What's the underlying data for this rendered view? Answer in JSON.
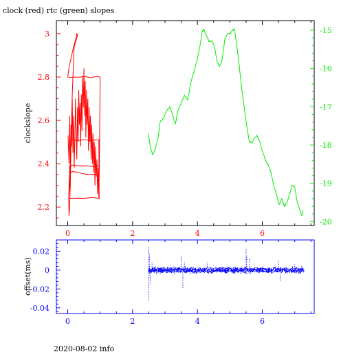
{
  "title": "clock (red) rtc (green) slopes",
  "footer": "2020-08-02 info",
  "colors": {
    "clock": "#ff0000",
    "rtc": "#00ee00",
    "offset": "#0000ff",
    "axis": "#000000"
  },
  "chart_data": [
    {
      "type": "line",
      "title": "clock (red) rtc (green) slopes",
      "xlabel": "",
      "ylabel": "clockslope",
      "xlim": [
        -0.35,
        7.6
      ],
      "xticks": [
        0,
        2,
        4,
        6
      ],
      "ylim_left": [
        2.115,
        3.06
      ],
      "yticks_left": [
        2.2,
        2.4,
        2.6,
        2.8,
        3
      ],
      "ylim_right": [
        -20.1,
        -14.75
      ],
      "yticks_right": [
        -15,
        -16,
        -17,
        -18,
        -19,
        -20
      ],
      "series": [
        {
          "name": "clock",
          "color": "#ff0000",
          "axis": "left",
          "points": [
            [
              0.01,
              2.53
            ],
            [
              0.04,
              2.4
            ],
            [
              0.06,
              2.62
            ],
            [
              0.08,
              2.35
            ],
            [
              0.1,
              2.58
            ],
            [
              0.12,
              2.48
            ],
            [
              0.14,
              2.7
            ],
            [
              0.16,
              2.45
            ],
            [
              0.18,
              2.62
            ],
            [
              0.2,
              2.38
            ],
            [
              0.22,
              2.52
            ],
            [
              0.24,
              2.7
            ],
            [
              0.26,
              2.55
            ],
            [
              0.28,
              2.42
            ],
            [
              0.3,
              2.66
            ],
            [
              0.32,
              2.5
            ],
            [
              0.34,
              2.74
            ],
            [
              0.36,
              2.58
            ],
            [
              0.38,
              2.68
            ],
            [
              0.4,
              2.48
            ],
            [
              0.42,
              2.72
            ],
            [
              0.44,
              2.55
            ],
            [
              0.46,
              2.8
            ],
            [
              0.48,
              2.66
            ],
            [
              0.5,
              2.84
            ],
            [
              0.52,
              2.62
            ],
            [
              0.54,
              2.78
            ],
            [
              0.56,
              2.52
            ],
            [
              0.58,
              2.74
            ],
            [
              0.6,
              2.58
            ],
            [
              0.62,
              2.7
            ],
            [
              0.64,
              2.46
            ],
            [
              0.66,
              2.66
            ],
            [
              0.68,
              2.5
            ],
            [
              0.7,
              2.62
            ],
            [
              0.72,
              2.42
            ],
            [
              0.74,
              2.58
            ],
            [
              0.76,
              2.4
            ],
            [
              0.78,
              2.54
            ],
            [
              0.8,
              2.36
            ],
            [
              0.82,
              2.5
            ],
            [
              0.84,
              2.3
            ],
            [
              0.86,
              2.48
            ],
            [
              0.88,
              2.34
            ],
            [
              0.9,
              2.42
            ],
            [
              0.92,
              2.26
            ],
            [
              0.94,
              2.38
            ],
            [
              0.96,
              2.24
            ],
            [
              0.98,
              2.45
            ],
            [
              0.99,
              2.62
            ],
            [
              1.0,
              2.79
            ],
            [
              0.99,
              2.8
            ],
            [
              0.8,
              2.8
            ],
            [
              0.6,
              2.8
            ],
            [
              0.4,
              2.8
            ],
            [
              0.2,
              2.8
            ],
            [
              0.0,
              2.8
            ],
            [
              0.06,
              2.86
            ],
            [
              0.12,
              2.9
            ],
            [
              0.18,
              2.94
            ],
            [
              0.24,
              2.97
            ],
            [
              0.28,
              3.0
            ],
            [
              0.3,
              2.99
            ],
            [
              0.2,
              2.94
            ],
            [
              0.14,
              2.72
            ],
            [
              0.1,
              2.48
            ],
            [
              0.08,
              2.3
            ],
            [
              0.06,
              2.2
            ],
            [
              0.04,
              2.16
            ],
            [
              0.03,
              2.24
            ],
            [
              0.05,
              2.36
            ],
            [
              0.3,
              2.36
            ],
            [
              0.6,
              2.35
            ],
            [
              0.96,
              2.35
            ],
            [
              0.98,
              2.39
            ],
            [
              0.6,
              2.39
            ],
            [
              0.3,
              2.39
            ],
            [
              0.05,
              2.39
            ],
            [
              0.07,
              2.24
            ],
            [
              0.5,
              2.24
            ],
            [
              0.97,
              2.24
            ],
            [
              0.96,
              2.51
            ],
            [
              0.5,
              2.51
            ],
            [
              0.07,
              2.51
            ]
          ]
        },
        {
          "name": "rtc",
          "color": "#00ee00",
          "axis": "right",
          "points": [
            [
              2.48,
              -17.7
            ],
            [
              2.55,
              -18.05
            ],
            [
              2.62,
              -18.25
            ],
            [
              2.7,
              -18.1
            ],
            [
              2.78,
              -17.85
            ],
            [
              2.85,
              -17.4
            ],
            [
              2.95,
              -17.3
            ],
            [
              3.05,
              -17.1
            ],
            [
              3.15,
              -17.0
            ],
            [
              3.25,
              -17.25
            ],
            [
              3.32,
              -17.45
            ],
            [
              3.4,
              -17.1
            ],
            [
              3.5,
              -16.9
            ],
            [
              3.6,
              -16.7
            ],
            [
              3.7,
              -16.82
            ],
            [
              3.8,
              -16.35
            ],
            [
              3.9,
              -16.05
            ],
            [
              4.0,
              -15.75
            ],
            [
              4.08,
              -15.4
            ],
            [
              4.14,
              -15.05
            ],
            [
              4.2,
              -14.98
            ],
            [
              4.28,
              -15.15
            ],
            [
              4.36,
              -15.3
            ],
            [
              4.44,
              -15.28
            ],
            [
              4.52,
              -15.4
            ],
            [
              4.6,
              -15.8
            ],
            [
              4.68,
              -15.95
            ],
            [
              4.76,
              -15.78
            ],
            [
              4.84,
              -15.25
            ],
            [
              4.92,
              -15.1
            ],
            [
              5.0,
              -15.1
            ],
            [
              5.08,
              -15.0
            ],
            [
              5.14,
              -14.97
            ],
            [
              5.2,
              -15.3
            ],
            [
              5.28,
              -15.85
            ],
            [
              5.36,
              -16.5
            ],
            [
              5.44,
              -17.0
            ],
            [
              5.52,
              -17.5
            ],
            [
              5.6,
              -17.9
            ],
            [
              5.68,
              -17.95
            ],
            [
              5.76,
              -17.8
            ],
            [
              5.84,
              -17.75
            ],
            [
              5.92,
              -17.9
            ],
            [
              6.0,
              -18.15
            ],
            [
              6.1,
              -18.4
            ],
            [
              6.2,
              -18.55
            ],
            [
              6.28,
              -18.75
            ],
            [
              6.36,
              -19.1
            ],
            [
              6.44,
              -19.3
            ],
            [
              6.52,
              -19.55
            ],
            [
              6.6,
              -19.4
            ],
            [
              6.68,
              -19.6
            ],
            [
              6.76,
              -19.5
            ],
            [
              6.84,
              -19.3
            ],
            [
              6.92,
              -19.05
            ],
            [
              7.0,
              -19.1
            ],
            [
              7.08,
              -19.5
            ],
            [
              7.16,
              -19.7
            ],
            [
              7.22,
              -19.85
            ],
            [
              7.26,
              -19.7
            ]
          ]
        }
      ]
    },
    {
      "type": "scatter",
      "xlabel": "",
      "ylabel": "offset(ms)",
      "xlim": [
        -0.35,
        7.6
      ],
      "xticks": [
        0,
        2,
        4,
        6
      ],
      "ylim": [
        -0.046,
        0.032
      ],
      "yticks": [
        0.02,
        0,
        -0.02,
        -0.04
      ],
      "series": [
        {
          "name": "offset",
          "color": "#0000ff",
          "x_range": [
            2.48,
            7.28
          ],
          "y_center": 0.0,
          "y_spread": 0.004,
          "spikes": [
            [
              2.5,
              0.025
            ],
            [
              2.5,
              -0.032
            ],
            [
              2.52,
              0.018
            ],
            [
              2.54,
              -0.015
            ],
            [
              2.6,
              0.009
            ],
            [
              3.5,
              0.016
            ],
            [
              3.55,
              -0.019
            ],
            [
              3.6,
              0.008
            ],
            [
              4.3,
              0.009
            ],
            [
              5.5,
              0.023
            ],
            [
              5.52,
              0.016
            ],
            [
              5.6,
              0.012
            ],
            [
              6.5,
              0.01
            ],
            [
              6.55,
              -0.012
            ],
            [
              7.0,
              0.006
            ]
          ]
        }
      ]
    }
  ]
}
